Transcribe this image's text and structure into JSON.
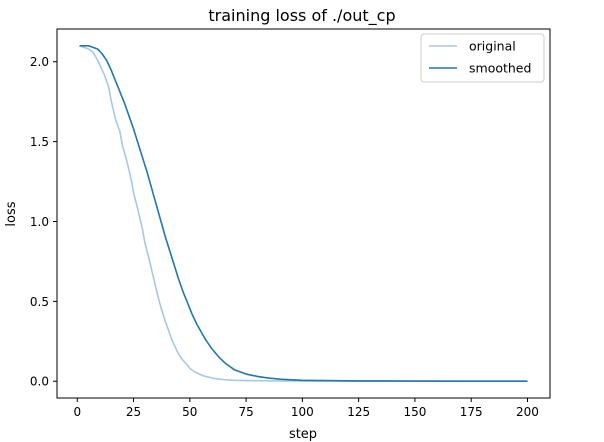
{
  "chart_data": {
    "type": "line",
    "title": "training loss of ./out_cp",
    "xlabel": "step",
    "ylabel": "loss",
    "xlim": [
      -9,
      210
    ],
    "ylim": [
      -0.105,
      2.205
    ],
    "xticks": [
      0,
      25,
      50,
      75,
      100,
      125,
      150,
      175,
      200
    ],
    "yticks": [
      0.0,
      0.5,
      1.0,
      1.5,
      2.0
    ],
    "legend_position": "top-right",
    "series": [
      {
        "name": "original",
        "color": "#a6c9e3",
        "x": [
          1,
          3,
          5,
          7,
          9,
          10,
          12,
          14,
          15,
          17,
          19,
          20,
          22,
          24,
          25,
          27,
          29,
          30,
          32,
          34,
          35,
          37,
          39,
          40,
          42,
          44,
          45,
          47,
          49,
          50,
          52,
          55,
          57,
          60,
          62,
          65,
          70,
          75,
          80,
          90,
          100,
          125,
          150,
          175,
          200
        ],
        "y": [
          2.1,
          2.09,
          2.08,
          2.06,
          2.01,
          1.98,
          1.92,
          1.84,
          1.76,
          1.64,
          1.56,
          1.48,
          1.38,
          1.26,
          1.18,
          1.07,
          0.95,
          0.87,
          0.76,
          0.64,
          0.58,
          0.47,
          0.38,
          0.34,
          0.26,
          0.2,
          0.17,
          0.13,
          0.1,
          0.08,
          0.06,
          0.04,
          0.03,
          0.02,
          0.015,
          0.01,
          0.006,
          0.004,
          0.003,
          0.002,
          0.001,
          0.0005,
          0.0003,
          0.0002,
          0.0001
        ]
      },
      {
        "name": "smoothed",
        "color": "#1f77b4",
        "x": [
          1,
          3,
          5,
          7,
          9,
          11,
          13,
          15,
          17,
          19,
          21,
          23,
          25,
          27,
          29,
          31,
          33,
          35,
          37,
          39,
          41,
          43,
          45,
          47,
          49,
          51,
          53,
          55,
          57,
          60,
          63,
          66,
          70,
          75,
          80,
          85,
          90,
          95,
          100,
          110,
          125,
          150,
          175,
          200
        ],
        "y": [
          2.1,
          2.1,
          2.1,
          2.09,
          2.08,
          2.05,
          2.01,
          1.95,
          1.88,
          1.81,
          1.74,
          1.66,
          1.58,
          1.49,
          1.4,
          1.31,
          1.21,
          1.11,
          1.01,
          0.91,
          0.82,
          0.73,
          0.64,
          0.56,
          0.49,
          0.42,
          0.36,
          0.31,
          0.26,
          0.2,
          0.15,
          0.11,
          0.07,
          0.045,
          0.03,
          0.02,
          0.013,
          0.009,
          0.006,
          0.004,
          0.002,
          0.001,
          0.0005,
          0.0003
        ]
      }
    ]
  }
}
